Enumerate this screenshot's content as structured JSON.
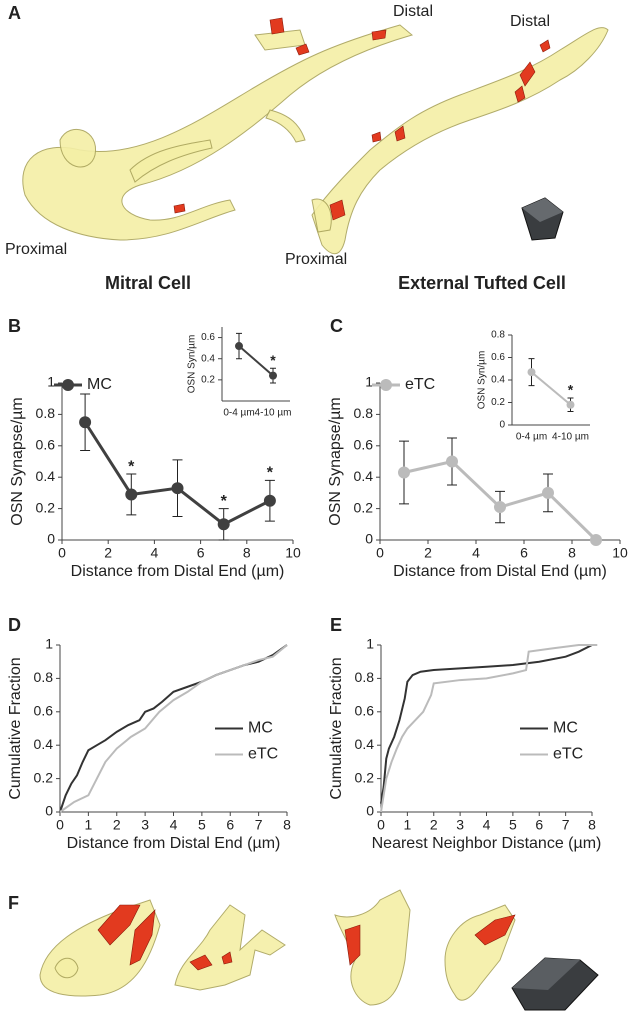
{
  "panel_labels": [
    "A",
    "B",
    "C",
    "D",
    "E",
    "F"
  ],
  "panel_a": {
    "labels": [
      "Distal",
      "Distal",
      "Proximal",
      "Proximal"
    ],
    "titles": [
      "Mitral Cell",
      "External Tufted Cell"
    ]
  },
  "chart_data": [
    {
      "type": "line",
      "x": [
        1,
        3,
        5,
        7,
        9
      ],
      "xlim": [
        0,
        10
      ],
      "xticks": [
        0,
        2,
        4,
        6,
        8,
        10
      ],
      "ylim": [
        0,
        1
      ],
      "yticks": [
        0,
        0.2,
        0.4,
        0.6,
        0.8,
        1
      ],
      "x_label": "Distance from Distal End (µm)",
      "y_label": "OSN Synapse/µm",
      "legend": "upper left",
      "markers": true,
      "series": [
        {
          "name": "MC",
          "color": "#404040",
          "values": [
            0.75,
            0.29,
            0.33,
            0.1,
            0.25
          ],
          "errors": [
            0.18,
            0.13,
            0.18,
            0.1,
            0.13
          ]
        }
      ],
      "annotations": [
        {
          "x": 3,
          "text": "*"
        },
        {
          "x": 7,
          "text": "*"
        },
        {
          "x": 9,
          "text": "*"
        }
      ]
    },
    {
      "type": "line",
      "categories": [
        "0-4 µm",
        "4-10 µm"
      ],
      "ylim": [
        0,
        0.7
      ],
      "yticks": [
        0.2,
        0.4,
        0.6
      ],
      "y_label": "OSN Syn/µm",
      "markers": true,
      "series": [
        {
          "color": "#404040",
          "values": [
            0.52,
            0.24
          ],
          "errors": [
            0.12,
            0.07
          ]
        }
      ],
      "annotations": [
        {
          "x": "4-10 µm",
          "text": "*"
        }
      ]
    },
    {
      "type": "line",
      "x": [
        1,
        3,
        5,
        7,
        9
      ],
      "xlim": [
        0,
        10
      ],
      "xticks": [
        0,
        2,
        4,
        6,
        8,
        10
      ],
      "ylim": [
        0,
        1
      ],
      "yticks": [
        0,
        0.2,
        0.4,
        0.6,
        0.8,
        1
      ],
      "x_label": "Distance from Distal End (µm)",
      "y_label": "OSN Synapse/µm",
      "legend": "upper left",
      "markers": true,
      "series": [
        {
          "name": "eTC",
          "color": "#bbbbbb",
          "values": [
            0.43,
            0.5,
            0.21,
            0.3,
            0
          ],
          "errors": [
            0.2,
            0.15,
            0.1,
            0.12,
            0
          ]
        }
      ]
    },
    {
      "type": "line",
      "categories": [
        "0-4 µm",
        "4-10 µm"
      ],
      "ylim": [
        0,
        0.8
      ],
      "yticks": [
        0,
        0.2,
        0.4,
        0.6,
        0.8
      ],
      "y_label": "OSN Syn/µm",
      "markers": true,
      "series": [
        {
          "color": "#bbbbbb",
          "values": [
            0.47,
            0.18
          ],
          "errors": [
            0.12,
            0.06
          ]
        }
      ],
      "annotations": [
        {
          "x": "4-10 µm",
          "text": "*"
        }
      ]
    },
    {
      "type": "line",
      "xlim": [
        0,
        8
      ],
      "xticks": [
        0,
        1,
        2,
        3,
        4,
        5,
        6,
        7,
        8
      ],
      "ylim": [
        0,
        1
      ],
      "yticks": [
        0,
        0.2,
        0.4,
        0.6,
        0.8,
        1
      ],
      "x_label": "Distance from Distal End (µm)",
      "y_label": "Cumulative Fraction",
      "legend": "center right",
      "series": [
        {
          "name": "MC",
          "color": "#333333",
          "x": [
            0,
            0.2,
            0.4,
            0.6,
            0.8,
            1.0,
            1.3,
            1.6,
            2.0,
            2.4,
            2.8,
            3.0,
            3.3,
            3.6,
            4.0,
            4.5,
            5.0,
            5.5,
            6.0,
            6.5,
            7.0,
            7.5,
            8.0
          ],
          "values": [
            0,
            0.1,
            0.17,
            0.22,
            0.3,
            0.37,
            0.4,
            0.43,
            0.48,
            0.52,
            0.55,
            0.6,
            0.62,
            0.66,
            0.72,
            0.75,
            0.78,
            0.82,
            0.85,
            0.88,
            0.9,
            0.94,
            1.0
          ]
        },
        {
          "name": "eTC",
          "color": "#bbbbbb",
          "x": [
            0,
            0.5,
            1.0,
            1.3,
            1.6,
            2.0,
            2.5,
            3.0,
            3.5,
            4.0,
            4.5,
            5.0,
            5.5,
            6.0,
            6.5,
            7.0,
            7.5,
            8.0
          ],
          "values": [
            0,
            0.06,
            0.1,
            0.2,
            0.3,
            0.38,
            0.45,
            0.5,
            0.6,
            0.67,
            0.72,
            0.78,
            0.82,
            0.85,
            0.88,
            0.91,
            0.93,
            1.0
          ]
        }
      ]
    },
    {
      "type": "line",
      "xlim": [
        0,
        8
      ],
      "xticks": [
        0,
        1,
        2,
        3,
        4,
        5,
        6,
        7,
        8
      ],
      "ylim": [
        0,
        1
      ],
      "yticks": [
        0,
        0.2,
        0.4,
        0.6,
        0.8,
        1
      ],
      "x_label": "Nearest Neighbor Distance (µm)",
      "y_label": "Cumulative Fraction",
      "legend": "center right",
      "series": [
        {
          "name": "MC",
          "color": "#333333",
          "x": [
            0,
            0.1,
            0.2,
            0.3,
            0.5,
            0.7,
            0.9,
            1.0,
            1.2,
            1.5,
            2,
            3,
            4,
            5,
            6,
            7,
            7.5,
            8
          ],
          "values": [
            0.05,
            0.15,
            0.32,
            0.38,
            0.45,
            0.55,
            0.68,
            0.78,
            0.82,
            0.84,
            0.85,
            0.86,
            0.87,
            0.88,
            0.9,
            0.93,
            0.96,
            1.0
          ]
        },
        {
          "name": "eTC",
          "color": "#bbbbbb",
          "x": [
            0,
            0.2,
            0.4,
            0.6,
            0.8,
            1.0,
            1.3,
            1.6,
            1.9,
            2.0,
            3,
            4,
            5,
            5.5,
            5.6,
            6.5,
            7.5,
            8.2
          ],
          "values": [
            0,
            0.2,
            0.3,
            0.38,
            0.45,
            0.5,
            0.55,
            0.6,
            0.7,
            0.77,
            0.79,
            0.8,
            0.83,
            0.85,
            0.96,
            0.98,
            1.0,
            1.0
          ]
        }
      ]
    }
  ]
}
